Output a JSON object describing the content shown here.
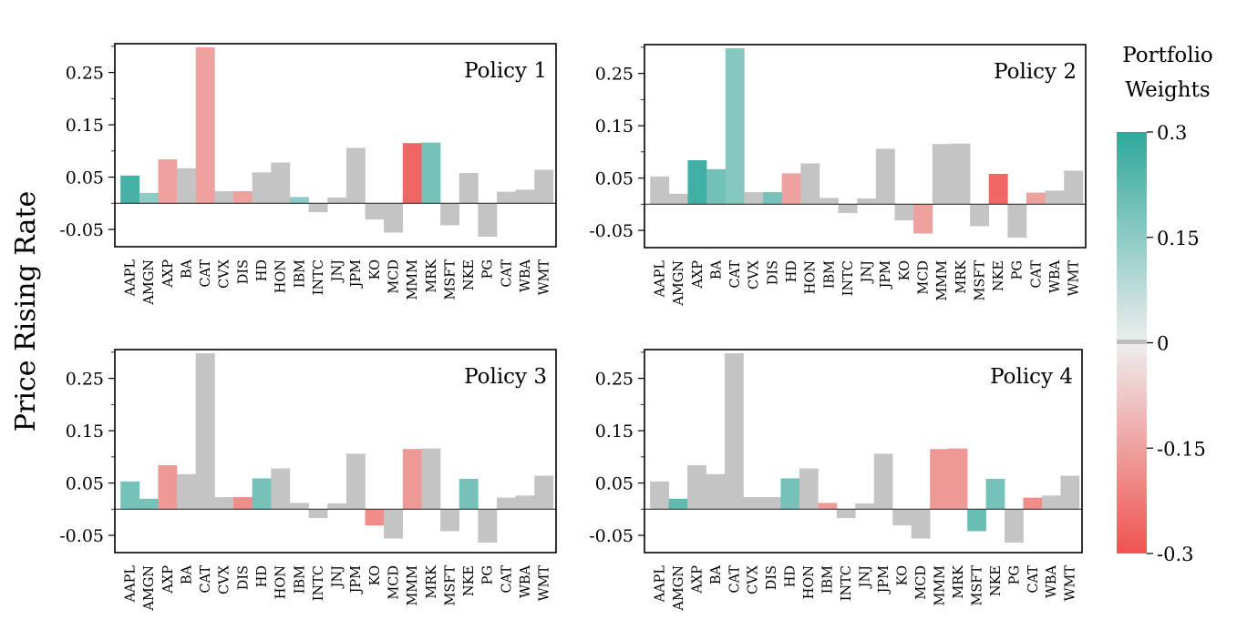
{
  "figure": {
    "ylabel": "Price Rising Rate",
    "colorbar": {
      "title_lines": [
        "Portfolio",
        "Weights"
      ],
      "ticks": [
        "0.3",
        "0.15",
        "0",
        "-0.15",
        "-0.3"
      ],
      "tick_values": [
        0.3,
        0.15,
        0,
        -0.15,
        -0.3
      ],
      "min": -0.3,
      "max": 0.3,
      "colors": {
        "positive": "#2ea89b",
        "zero": "#eeeeee",
        "negative": "#ef5350",
        "neutral": "#c4c4c4"
      }
    }
  },
  "chart_data": [
    {
      "type": "bar",
      "title": "Policy 1",
      "categories": [
        "AAPL",
        "AMGN",
        "AXP",
        "BA",
        "CAT",
        "CVX",
        "DIS",
        "HD",
        "HON",
        "IBM",
        "INTC",
        "JNJ",
        "JPM",
        "KO",
        "MCD",
        "MMM",
        "MRK",
        "MSFT",
        "NKE",
        "PG",
        "CAT",
        "WBA",
        "WMT"
      ],
      "values": [
        0.053,
        0.02,
        0.084,
        0.067,
        0.298,
        0.023,
        0.023,
        0.059,
        0.078,
        0.012,
        -0.017,
        0.011,
        0.106,
        -0.031,
        -0.056,
        0.115,
        0.116,
        -0.042,
        0.058,
        -0.064,
        0.022,
        0.026,
        0.064
      ],
      "weights": [
        0.25,
        0.1,
        -0.1,
        0,
        -0.1,
        0,
        -0.1,
        0,
        0,
        0.1,
        0,
        0,
        0,
        0,
        0,
        -0.25,
        0.15,
        0,
        0,
        0,
        0,
        0,
        0
      ],
      "yticks": [
        "0.25",
        "0.15",
        "0.05",
        "-0.05"
      ],
      "ytick_values": [
        0.25,
        0.15,
        0.05,
        -0.05
      ],
      "ylim": [
        -0.083,
        0.305
      ]
    },
    {
      "type": "bar",
      "title": "Policy 2",
      "categories": [
        "AAPL",
        "AMGN",
        "AXP",
        "BA",
        "CAT",
        "CVX",
        "DIS",
        "HD",
        "HON",
        "IBM",
        "INTC",
        "JNJ",
        "JPM",
        "KO",
        "MCD",
        "MMM",
        "MRK",
        "MSFT",
        "NKE",
        "PG",
        "CAT",
        "WBA",
        "WMT"
      ],
      "values": [
        0.053,
        0.02,
        0.084,
        0.067,
        0.298,
        0.023,
        0.023,
        0.059,
        0.078,
        0.012,
        -0.017,
        0.011,
        0.106,
        -0.031,
        -0.056,
        0.115,
        0.116,
        -0.042,
        0.058,
        -0.064,
        0.022,
        0.026,
        0.064
      ],
      "weights": [
        0,
        0,
        0.26,
        0.16,
        0.12,
        0,
        0.15,
        -0.1,
        0,
        0,
        0,
        0,
        0,
        0,
        -0.1,
        0,
        0,
        0,
        -0.25,
        0,
        -0.1,
        0,
        0
      ],
      "yticks": [
        "0.25",
        "0.15",
        "0.05",
        "-0.05"
      ],
      "ytick_values": [
        0.25,
        0.15,
        0.05,
        -0.05
      ],
      "ylim": [
        -0.083,
        0.305
      ]
    },
    {
      "type": "bar",
      "title": "Policy 3",
      "categories": [
        "AAPL",
        "AMGN",
        "AXP",
        "BA",
        "CAT",
        "CVX",
        "DIS",
        "HD",
        "HON",
        "IBM",
        "INTC",
        "JNJ",
        "JPM",
        "KO",
        "MCD",
        "MMM",
        "MRK",
        "MSFT",
        "NKE",
        "PG",
        "CAT",
        "WBA",
        "WMT"
      ],
      "values": [
        0.053,
        0.02,
        0.084,
        0.067,
        0.298,
        0.023,
        0.023,
        0.059,
        0.078,
        0.012,
        -0.017,
        0.011,
        0.106,
        -0.031,
        -0.056,
        0.115,
        0.116,
        -0.042,
        0.058,
        -0.064,
        0.022,
        0.026,
        0.064
      ],
      "weights": [
        0.15,
        0.15,
        -0.12,
        0,
        0,
        0,
        -0.15,
        0.15,
        0,
        0,
        0,
        0,
        0,
        -0.15,
        0,
        -0.12,
        0,
        0,
        0.15,
        0,
        0,
        0,
        0
      ],
      "yticks": [
        "0.25",
        "0.15",
        "0.05",
        "-0.05"
      ],
      "ytick_values": [
        0.25,
        0.15,
        0.05,
        -0.05
      ],
      "ylim": [
        -0.083,
        0.305
      ]
    },
    {
      "type": "bar",
      "title": "Policy 4",
      "categories": [
        "AAPL",
        "AMGN",
        "AXP",
        "BA",
        "CAT",
        "CVX",
        "DIS",
        "HD",
        "HON",
        "IBM",
        "INTC",
        "JNJ",
        "JPM",
        "KO",
        "MCD",
        "MMM",
        "MRK",
        "MSFT",
        "NKE",
        "PG",
        "CAT",
        "WBA",
        "WMT"
      ],
      "values": [
        0.053,
        0.02,
        0.084,
        0.067,
        0.298,
        0.023,
        0.023,
        0.059,
        0.078,
        0.012,
        -0.017,
        0.011,
        0.106,
        -0.031,
        -0.056,
        0.115,
        0.116,
        -0.042,
        0.058,
        -0.064,
        0.022,
        0.026,
        0.064
      ],
      "weights": [
        0,
        0.2,
        0,
        0,
        0,
        0,
        0,
        0.15,
        0,
        -0.12,
        0,
        0,
        0,
        0,
        0,
        -0.12,
        -0.12,
        0.18,
        0.15,
        0,
        -0.15,
        0,
        0
      ],
      "yticks": [
        "0.25",
        "0.15",
        "0.05",
        "-0.05"
      ],
      "ytick_values": [
        0.25,
        0.15,
        0.05,
        -0.05
      ],
      "ylim": [
        -0.083,
        0.305
      ]
    }
  ]
}
